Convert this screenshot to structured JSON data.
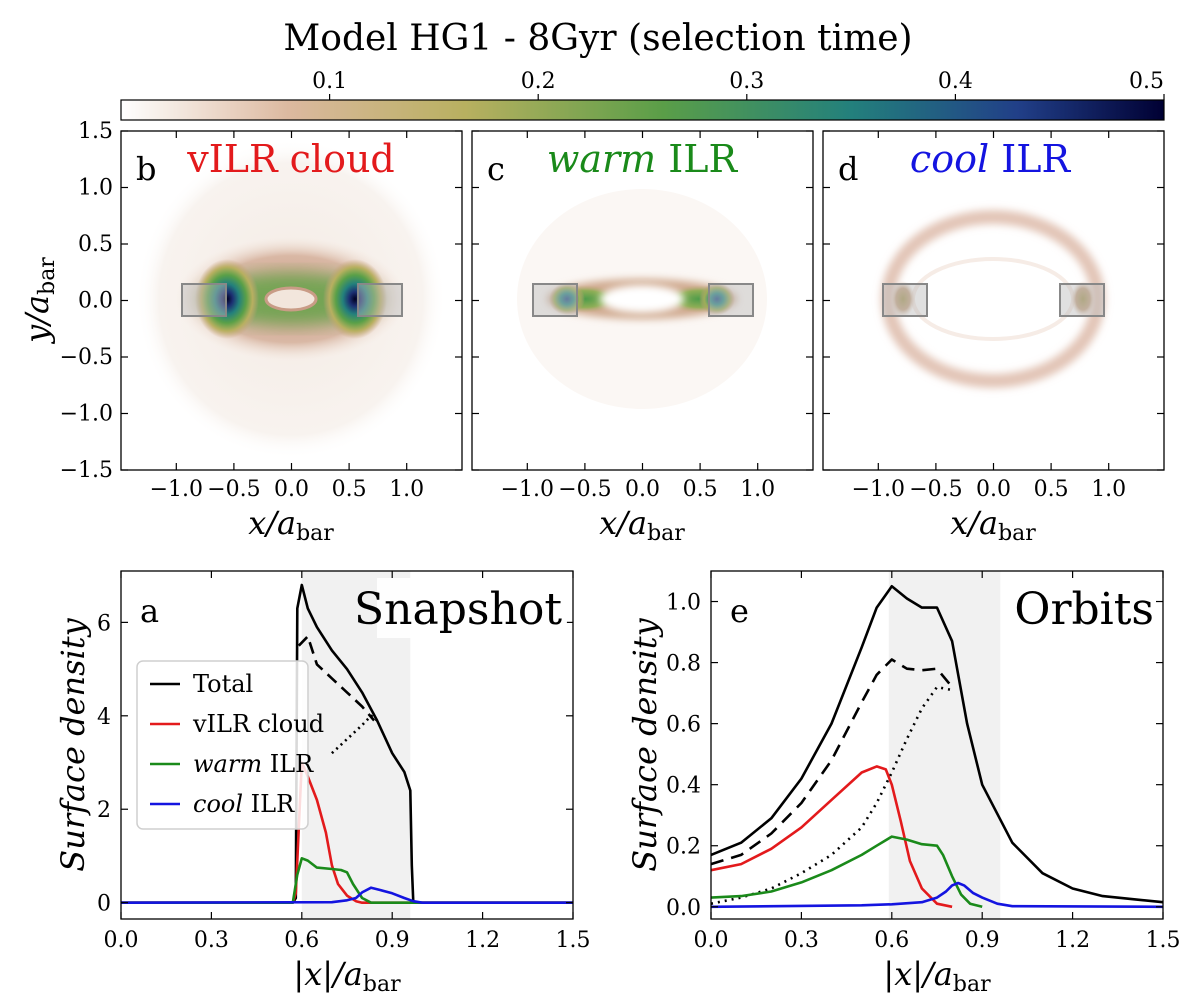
{
  "figure": {
    "title": "Model HG1 - 8Gyr (selection time)"
  },
  "colorbar": {
    "ticks": [
      "0.1",
      "0.2",
      "0.3",
      "0.4",
      "0.5"
    ],
    "tick_values": [
      0.1,
      0.2,
      0.3,
      0.4,
      0.5
    ],
    "range": [
      0,
      0.5
    ],
    "colors": [
      "#ffffff",
      "#dcb9a0",
      "#b8b060",
      "#5a9e48",
      "#23807c",
      "#213f88",
      "#000033"
    ]
  },
  "maps": [
    {
      "letter": "b",
      "title_prefix": "",
      "title_main": "vILR cloud",
      "title_color": "#e31a1c",
      "xlabel": "x/a",
      "ylabel": "y/a",
      "sub": "bar",
      "xticks": [
        "−1.0",
        "−0.5",
        "0.0",
        "0.5",
        "1.0"
      ],
      "yticks": [
        "−1.5",
        "−1.0",
        "−0.5",
        "0.0",
        "0.5",
        "1.0",
        "1.5"
      ]
    },
    {
      "letter": "c",
      "title_prefix": "warm",
      "title_main": " ILR",
      "title_color": "#1a8a1a",
      "xlabel": "x/a",
      "sub": "bar",
      "xticks": [
        "−1.0",
        "−0.5",
        "0.0",
        "0.5",
        "1.0"
      ]
    },
    {
      "letter": "d",
      "title_prefix": "cool",
      "title_main": " ILR",
      "title_color": "#1414e0",
      "xlabel": "x/a",
      "sub": "bar",
      "xticks": [
        "−1.0",
        "−0.5",
        "0.0",
        "0.5",
        "1.0"
      ]
    }
  ],
  "chart_data": [
    {
      "type": "line",
      "panel": "a",
      "label": "Snapshot",
      "xlabel": "|x|/a",
      "xlabel_sub": "bar",
      "ylabel": "Surface density",
      "xlim": [
        0,
        1.5
      ],
      "ylim": [
        -0.35,
        7.1
      ],
      "xticks": [
        0.0,
        0.3,
        0.6,
        0.9,
        1.2,
        1.5
      ],
      "xtick_labels": [
        "0.0",
        "0.3",
        "0.6",
        "0.9",
        "1.2",
        "1.5"
      ],
      "yticks": [
        0,
        2,
        4,
        6
      ],
      "ytick_labels": [
        "0",
        "2",
        "4",
        "6"
      ],
      "shaded_x": [
        0.6,
        0.96
      ],
      "legend": [
        {
          "label": "Total",
          "prefix": "",
          "color": "#000000"
        },
        {
          "label": "vILR cloud",
          "prefix": "",
          "color": "#e31a1c"
        },
        {
          "label": " ILR",
          "prefix": "warm",
          "color": "#1a8a1a"
        },
        {
          "label": " ILR",
          "prefix": "cool",
          "color": "#1414e0"
        }
      ],
      "series": [
        {
          "name": "Total",
          "color": "#000000",
          "dash": "",
          "x": [
            0,
            0.57,
            0.58,
            0.585,
            0.6,
            0.62,
            0.65,
            0.7,
            0.75,
            0.8,
            0.85,
            0.9,
            0.94,
            0.96,
            0.965,
            0.97,
            1.5
          ],
          "y": [
            0,
            0,
            0.1,
            6.3,
            6.8,
            6.3,
            5.9,
            5.4,
            5.0,
            4.5,
            3.9,
            3.2,
            2.8,
            2.4,
            0.8,
            0,
            0
          ]
        },
        {
          "name": "Total (dashed)",
          "color": "#000000",
          "dash": "12,7",
          "x": [
            0.59,
            0.62,
            0.65,
            0.7,
            0.75,
            0.8,
            0.84
          ],
          "y": [
            5.5,
            5.7,
            5.1,
            4.8,
            4.5,
            4.2,
            3.9
          ]
        },
        {
          "name": "Total (dotted)",
          "color": "#000000",
          "dash": "2,4",
          "x": [
            0.7,
            0.75,
            0.8,
            0.83,
            0.85
          ],
          "y": [
            3.2,
            3.5,
            3.8,
            4.0,
            3.9
          ]
        },
        {
          "name": "vILR cloud",
          "color": "#e31a1c",
          "dash": "",
          "x": [
            0,
            0.57,
            0.58,
            0.6,
            0.62,
            0.65,
            0.68,
            0.7,
            0.72,
            0.75,
            0.78,
            0.8,
            1.5
          ],
          "y": [
            0,
            0,
            0.2,
            3.0,
            2.7,
            2.2,
            1.5,
            0.8,
            0.4,
            0.15,
            0.03,
            0,
            0
          ]
        },
        {
          "name": "warm ILR",
          "color": "#1a8a1a",
          "dash": "",
          "x": [
            0,
            0.57,
            0.585,
            0.6,
            0.62,
            0.65,
            0.7,
            0.73,
            0.75,
            0.77,
            0.8,
            0.83,
            1.5
          ],
          "y": [
            0,
            0,
            0.6,
            0.95,
            0.9,
            0.75,
            0.72,
            0.7,
            0.65,
            0.4,
            0.1,
            0,
            0
          ]
        },
        {
          "name": "cool ILR",
          "color": "#1414e0",
          "dash": "",
          "x": [
            0,
            0.7,
            0.75,
            0.78,
            0.8,
            0.83,
            0.86,
            0.9,
            0.94,
            0.97,
            1.0,
            1.5
          ],
          "y": [
            0,
            0.01,
            0.05,
            0.1,
            0.22,
            0.32,
            0.27,
            0.2,
            0.1,
            0.03,
            0,
            0
          ]
        }
      ]
    },
    {
      "type": "line",
      "panel": "e",
      "label": "Orbits",
      "xlabel": "|x|/a",
      "xlabel_sub": "bar",
      "ylabel": "Surface density",
      "xlim": [
        0,
        1.5
      ],
      "ylim": [
        -0.04,
        1.1
      ],
      "xticks": [
        0.0,
        0.3,
        0.6,
        0.9,
        1.2,
        1.5
      ],
      "xtick_labels": [
        "0.0",
        "0.3",
        "0.6",
        "0.9",
        "1.2",
        "1.5"
      ],
      "yticks": [
        0.0,
        0.2,
        0.4,
        0.6,
        0.8,
        1.0
      ],
      "ytick_labels": [
        "0.0",
        "0.2",
        "0.4",
        "0.6",
        "0.8",
        "1.0"
      ],
      "shaded_x": [
        0.59,
        0.96
      ],
      "series": [
        {
          "name": "Total",
          "color": "#000000",
          "dash": "",
          "x": [
            0,
            0.1,
            0.2,
            0.3,
            0.4,
            0.5,
            0.55,
            0.6,
            0.65,
            0.7,
            0.75,
            0.8,
            0.85,
            0.9,
            1.0,
            1.1,
            1.2,
            1.3,
            1.4,
            1.5
          ],
          "y": [
            0.17,
            0.21,
            0.29,
            0.42,
            0.6,
            0.85,
            0.98,
            1.05,
            1.01,
            0.98,
            0.98,
            0.87,
            0.6,
            0.4,
            0.21,
            0.11,
            0.06,
            0.035,
            0.025,
            0.015
          ]
        },
        {
          "name": "Total (dashed)",
          "color": "#000000",
          "dash": "13,8",
          "x": [
            0,
            0.1,
            0.2,
            0.3,
            0.4,
            0.5,
            0.55,
            0.6,
            0.65,
            0.7,
            0.75,
            0.8
          ],
          "y": [
            0.14,
            0.17,
            0.24,
            0.34,
            0.48,
            0.67,
            0.76,
            0.81,
            0.78,
            0.775,
            0.78,
            0.72
          ]
        },
        {
          "name": "Total (dotted)",
          "color": "#000000",
          "dash": "2,5",
          "x": [
            0,
            0.1,
            0.2,
            0.3,
            0.4,
            0.5,
            0.55,
            0.6,
            0.65,
            0.7,
            0.75,
            0.8
          ],
          "y": [
            0.01,
            0.03,
            0.06,
            0.11,
            0.17,
            0.26,
            0.34,
            0.44,
            0.55,
            0.65,
            0.72,
            0.71
          ]
        },
        {
          "name": "vILR cloud",
          "color": "#e31a1c",
          "dash": "",
          "x": [
            0,
            0.1,
            0.2,
            0.3,
            0.4,
            0.5,
            0.55,
            0.58,
            0.6,
            0.63,
            0.66,
            0.7,
            0.75,
            0.8
          ],
          "y": [
            0.12,
            0.14,
            0.19,
            0.26,
            0.35,
            0.44,
            0.46,
            0.45,
            0.4,
            0.28,
            0.15,
            0.06,
            0.01,
            0.0
          ]
        },
        {
          "name": "warm ILR",
          "color": "#1a8a1a",
          "dash": "",
          "x": [
            0,
            0.1,
            0.2,
            0.3,
            0.4,
            0.5,
            0.55,
            0.6,
            0.65,
            0.7,
            0.75,
            0.77,
            0.8,
            0.83,
            0.86,
            0.9
          ],
          "y": [
            0.03,
            0.035,
            0.05,
            0.08,
            0.12,
            0.17,
            0.2,
            0.23,
            0.22,
            0.205,
            0.2,
            0.17,
            0.1,
            0.04,
            0.01,
            0.0
          ]
        },
        {
          "name": "cool ILR",
          "color": "#1414e0",
          "dash": "",
          "x": [
            0,
            0.5,
            0.6,
            0.7,
            0.75,
            0.78,
            0.8,
            0.82,
            0.84,
            0.87,
            0.9,
            0.95,
            1.0,
            1.5
          ],
          "y": [
            0.0,
            0.005,
            0.008,
            0.015,
            0.03,
            0.05,
            0.07,
            0.078,
            0.07,
            0.045,
            0.03,
            0.01,
            0.002,
            0.0
          ]
        }
      ]
    }
  ]
}
